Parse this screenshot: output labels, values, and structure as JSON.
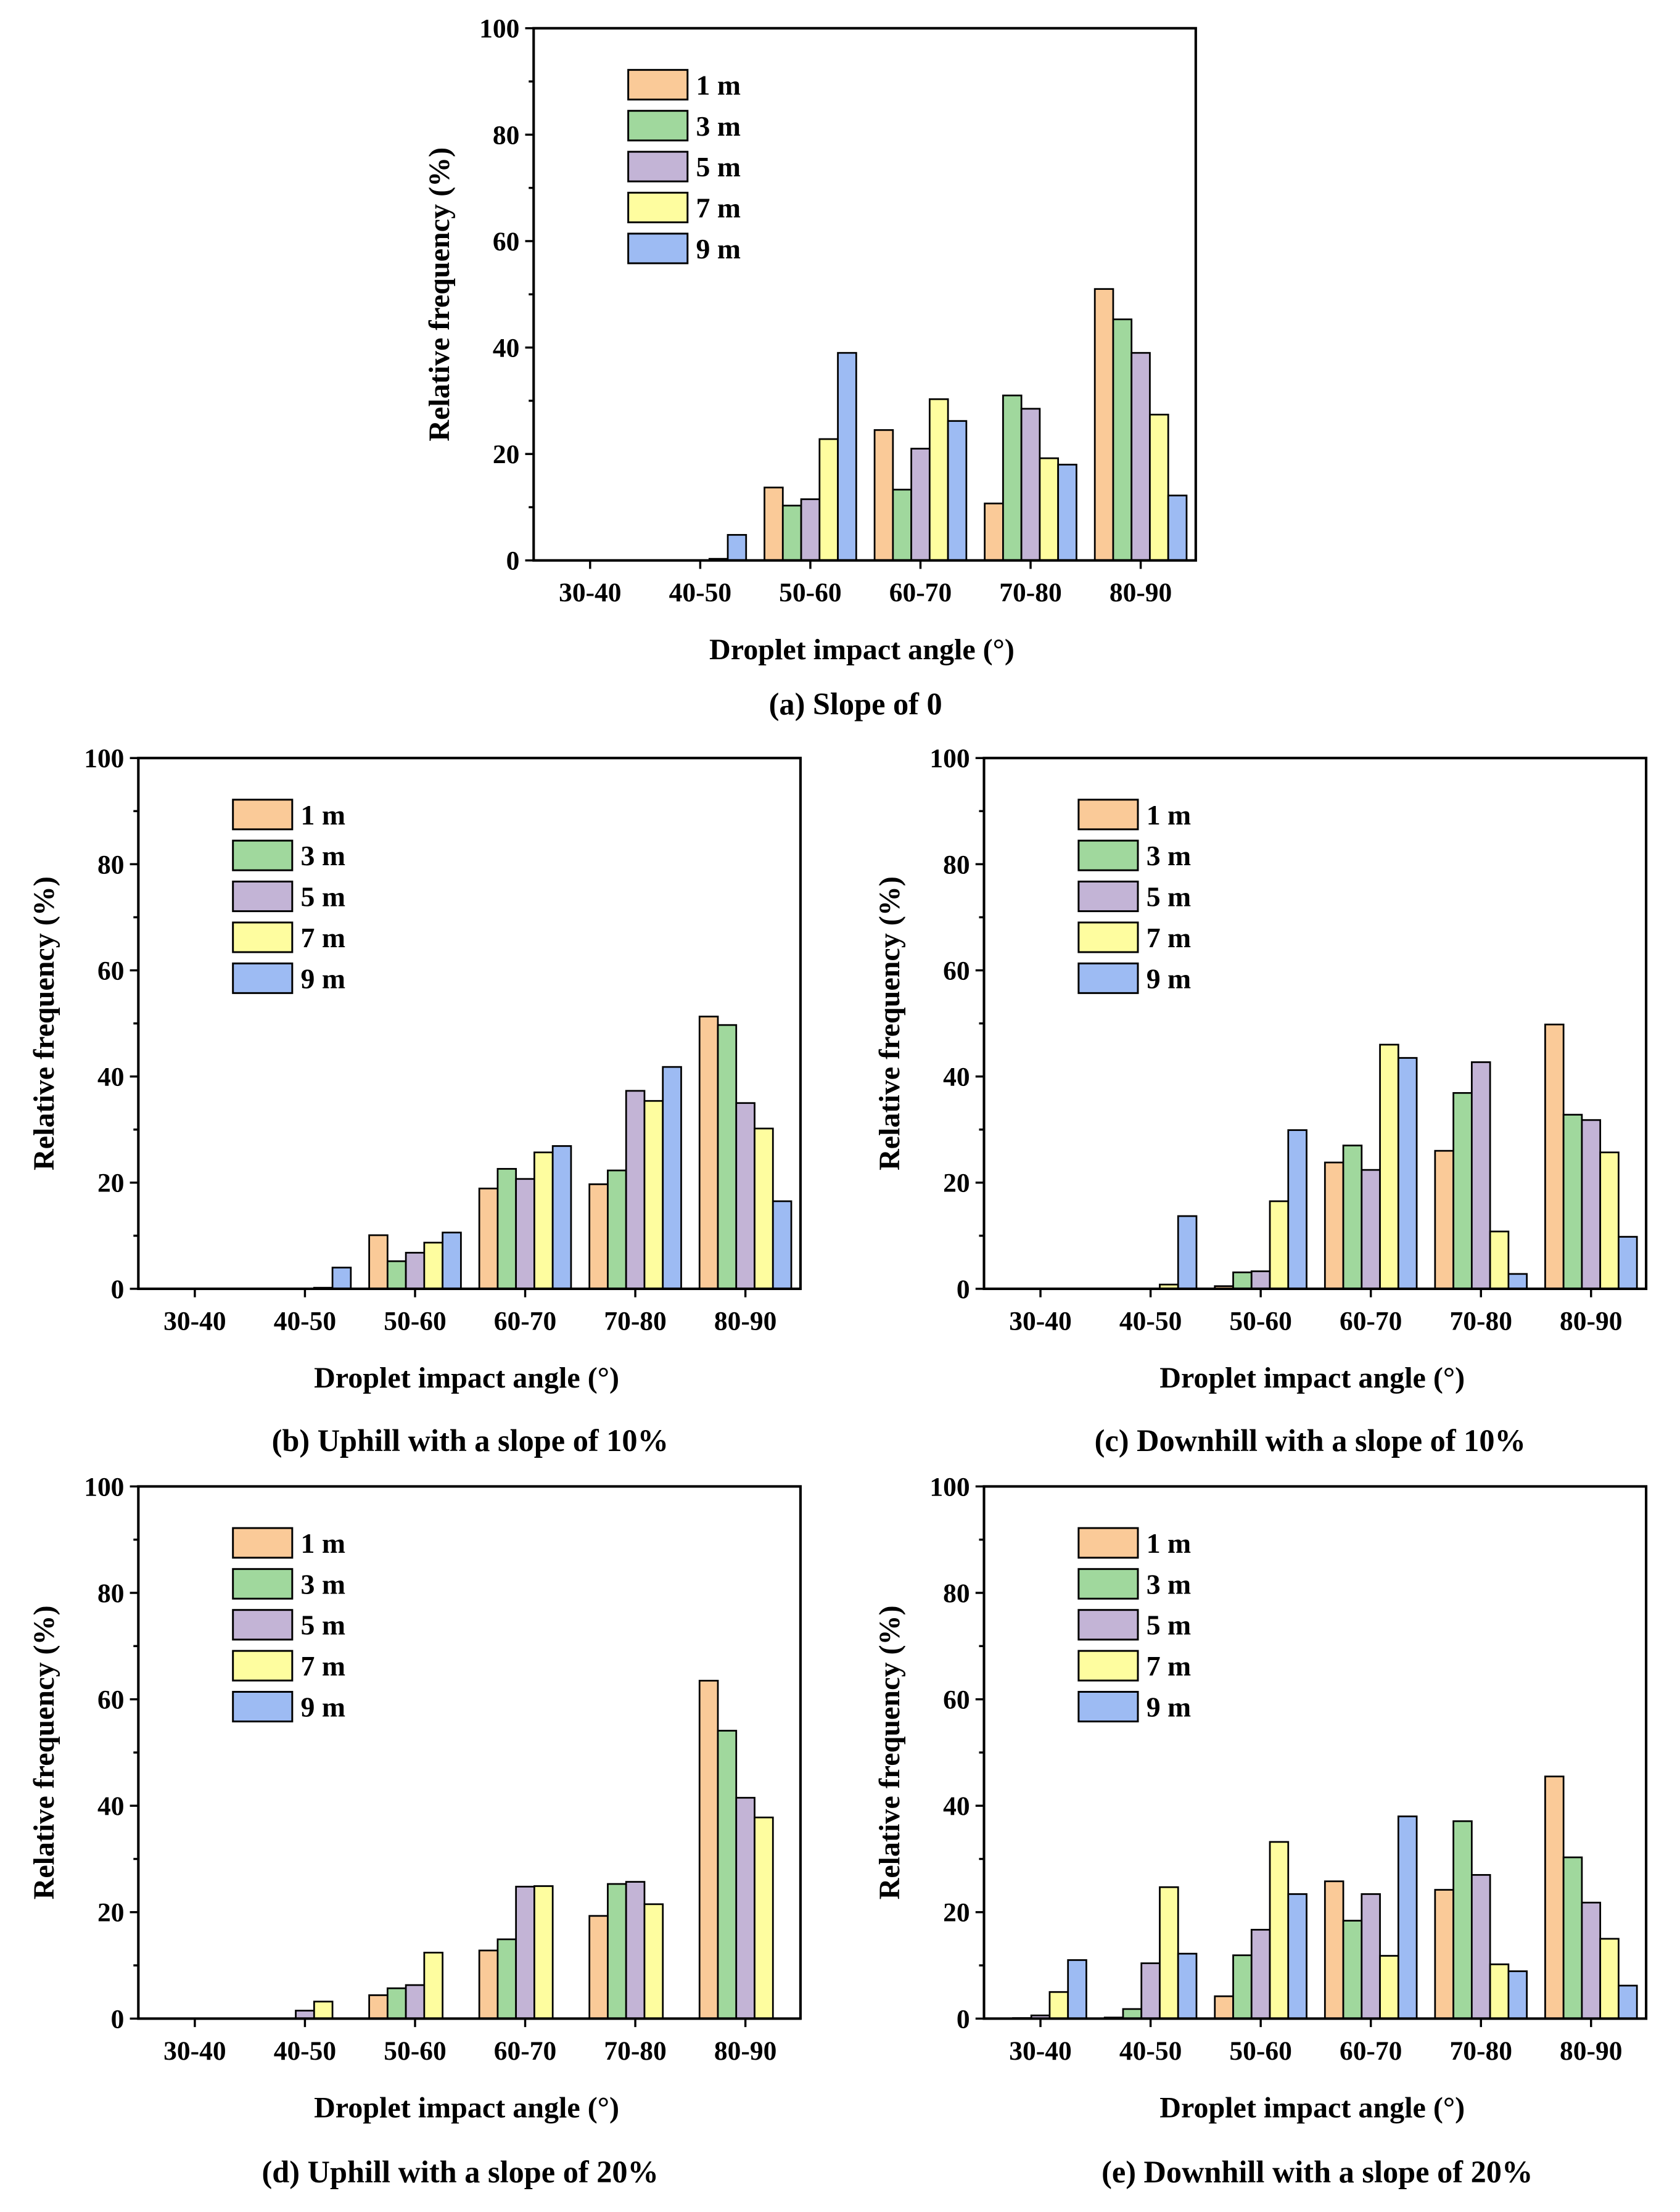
{
  "chart_data": [
    {
      "id": "a",
      "type": "bar",
      "title": "(a) Slope of 0",
      "xlabel": "Droplet impact angle (°)",
      "ylabel": "Relative frequency (%)",
      "ylim": [
        0,
        100
      ],
      "yticks": [
        "0",
        "20",
        "40",
        "60",
        "80",
        "100"
      ],
      "categories": [
        "30-40",
        "40-50",
        "50-60",
        "60-70",
        "70-80",
        "80-90"
      ],
      "legend_position": "top-left",
      "series": [
        {
          "name": "1 m",
          "color": "#FACA98",
          "values": [
            0,
            0,
            13.7,
            24.5,
            10.7,
            51.0
          ]
        },
        {
          "name": "3 m",
          "color": "#A0D89D",
          "values": [
            0,
            0,
            10.3,
            13.3,
            31.0,
            45.3
          ]
        },
        {
          "name": "5 m",
          "color": "#C3B4D6",
          "values": [
            0,
            0,
            11.5,
            21.0,
            28.5,
            39.0
          ]
        },
        {
          "name": "7 m",
          "color": "#FEFD9F",
          "values": [
            0,
            0.3,
            22.8,
            30.3,
            19.2,
            27.4
          ]
        },
        {
          "name": "9 m",
          "color": "#9DBBF3",
          "values": [
            0,
            4.8,
            39.0,
            26.2,
            18.0,
            12.2
          ]
        }
      ]
    },
    {
      "id": "b",
      "type": "bar",
      "title": "(b) Uphill with a slope of 10%",
      "xlabel": "Droplet impact angle (°)",
      "ylabel": "Relative frequency (%)",
      "ylim": [
        0,
        100
      ],
      "yticks": [
        "0",
        "20",
        "40",
        "60",
        "80",
        "100"
      ],
      "categories": [
        "30-40",
        "40-50",
        "50-60",
        "60-70",
        "70-80",
        "80-90"
      ],
      "legend_position": "top-left",
      "series": [
        {
          "name": "1 m",
          "color": "#FACA98",
          "values": [
            0,
            0,
            10.1,
            18.9,
            19.7,
            51.3
          ]
        },
        {
          "name": "3 m",
          "color": "#A0D89D",
          "values": [
            0,
            0,
            5.2,
            22.6,
            22.3,
            49.7
          ]
        },
        {
          "name": "5 m",
          "color": "#C3B4D6",
          "values": [
            0,
            0,
            6.8,
            20.7,
            37.3,
            35.0
          ]
        },
        {
          "name": "7 m",
          "color": "#FEFD9F",
          "values": [
            0,
            0.2,
            8.7,
            25.7,
            35.4,
            30.2
          ]
        },
        {
          "name": "9 m",
          "color": "#9DBBF3",
          "values": [
            0,
            4.0,
            10.6,
            26.9,
            41.8,
            16.5
          ]
        }
      ]
    },
    {
      "id": "c",
      "type": "bar",
      "title": "(c) Downhill with a slope of 10%",
      "xlabel": "Droplet impact angle (°)",
      "ylabel": "Relative frequency (%)",
      "ylim": [
        0,
        100
      ],
      "yticks": [
        "0",
        "20",
        "40",
        "60",
        "80",
        "100"
      ],
      "categories": [
        "30-40",
        "40-50",
        "50-60",
        "60-70",
        "70-80",
        "80-90"
      ],
      "legend_position": "top-left",
      "series": [
        {
          "name": "1 m",
          "color": "#FACA98",
          "values": [
            0,
            0,
            0.5,
            23.8,
            26.0,
            49.8
          ]
        },
        {
          "name": "3 m",
          "color": "#A0D89D",
          "values": [
            0,
            0,
            3.1,
            27.0,
            36.9,
            32.8
          ]
        },
        {
          "name": "5 m",
          "color": "#C3B4D6",
          "values": [
            0,
            0,
            3.3,
            22.4,
            42.7,
            31.8
          ]
        },
        {
          "name": "7 m",
          "color": "#FEFD9F",
          "values": [
            0,
            0.8,
            16.5,
            46.0,
            10.8,
            25.7
          ]
        },
        {
          "name": "9 m",
          "color": "#9DBBF3",
          "values": [
            0,
            13.7,
            29.9,
            43.5,
            2.8,
            9.8
          ]
        }
      ]
    },
    {
      "id": "d",
      "type": "bar",
      "title": "(d) Uphill with a slope of 20%",
      "xlabel": "Droplet impact angle (°)",
      "ylabel": "Relative frequency (%)",
      "ylim": [
        0,
        100
      ],
      "yticks": [
        "0",
        "20",
        "40",
        "60",
        "80",
        "100"
      ],
      "categories": [
        "30-40",
        "40-50",
        "50-60",
        "60-70",
        "70-80",
        "80-90"
      ],
      "legend_position": "top-left",
      "series": [
        {
          "name": "1 m",
          "color": "#FACA98",
          "values": [
            0,
            0,
            4.4,
            12.8,
            19.3,
            63.5
          ]
        },
        {
          "name": "3 m",
          "color": "#A0D89D",
          "values": [
            0,
            0,
            5.7,
            14.9,
            25.3,
            54.1
          ]
        },
        {
          "name": "5 m",
          "color": "#C3B4D6",
          "values": [
            0,
            1.5,
            6.3,
            24.8,
            25.7,
            41.5
          ]
        },
        {
          "name": "7 m",
          "color": "#FEFD9F",
          "values": [
            0,
            3.2,
            12.4,
            24.9,
            21.5,
            37.8
          ]
        },
        {
          "name": "9 m",
          "color": "#9DBBF3",
          "values": [
            0,
            0,
            0,
            0,
            0,
            0
          ]
        }
      ]
    },
    {
      "id": "e",
      "type": "bar",
      "title": "(e) Downhill with a slope of 20%",
      "xlabel": "Droplet impact angle (°)",
      "ylabel": "Relative frequency (%)",
      "ylim": [
        0,
        100
      ],
      "yticks": [
        "0",
        "20",
        "40",
        "60",
        "80",
        "100"
      ],
      "categories": [
        "30-40",
        "40-50",
        "50-60",
        "60-70",
        "70-80",
        "80-90"
      ],
      "legend_position": "top-left",
      "series": [
        {
          "name": "1 m",
          "color": "#FACA98",
          "values": [
            0,
            0.2,
            4.2,
            25.8,
            24.2,
            45.5
          ]
        },
        {
          "name": "3 m",
          "color": "#A0D89D",
          "values": [
            0.1,
            1.8,
            11.9,
            18.4,
            37.1,
            30.3
          ]
        },
        {
          "name": "5 m",
          "color": "#C3B4D6",
          "values": [
            0.6,
            10.4,
            16.7,
            23.4,
            27.0,
            21.8
          ]
        },
        {
          "name": "7 m",
          "color": "#FEFD9F",
          "values": [
            5.0,
            24.7,
            33.2,
            11.8,
            10.2,
            15.0
          ]
        },
        {
          "name": "9 m",
          "color": "#9DBBF3",
          "values": [
            11.0,
            12.2,
            23.4,
            38.0,
            8.9,
            6.2
          ]
        }
      ]
    }
  ]
}
